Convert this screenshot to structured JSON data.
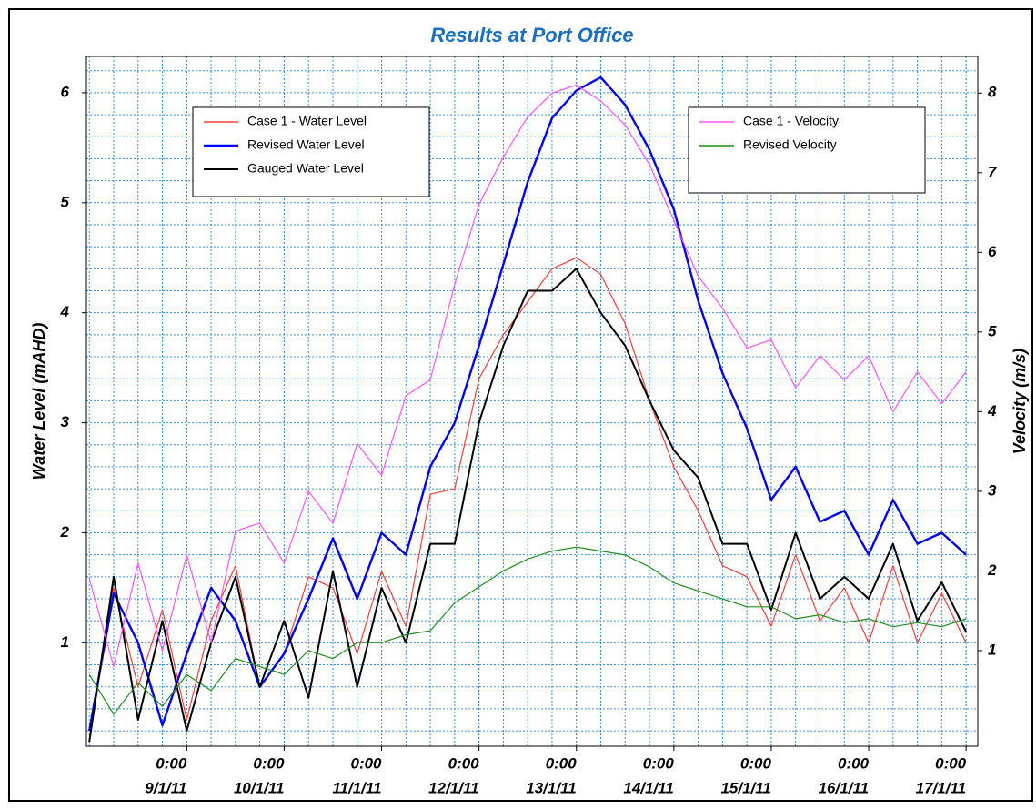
{
  "chart_data": {
    "type": "line",
    "title": "Results at Port Office",
    "y_label": "Water Level (mAHD)",
    "y2_label": "Velocity (m/s)",
    "x": [
      8.0,
      8.25,
      8.5,
      8.75,
      9.0,
      9.25,
      9.5,
      9.75,
      10.0,
      10.25,
      10.5,
      10.75,
      11.0,
      11.25,
      11.5,
      11.75,
      12.0,
      12.25,
      12.5,
      12.75,
      13.0,
      13.25,
      13.5,
      13.75,
      14.0,
      14.25,
      14.5,
      14.75,
      15.0,
      15.25,
      15.5,
      15.75,
      16.0,
      16.25,
      16.5,
      16.75,
      17.0
    ],
    "xlim": [
      7.97,
      17.12
    ],
    "xticks": [
      {
        "value": 9,
        "label": [
          "0:00",
          "9/1/11"
        ]
      },
      {
        "value": 10,
        "label": [
          "0:00",
          "10/1/11"
        ]
      },
      {
        "value": 11,
        "label": [
          "0:00",
          "11/1/11"
        ]
      },
      {
        "value": 12,
        "label": [
          "0:00",
          "12/1/11"
        ]
      },
      {
        "value": 13,
        "label": [
          "0:00",
          "13/1/11"
        ]
      },
      {
        "value": 14,
        "label": [
          "0:00",
          "14/1/11"
        ]
      },
      {
        "value": 15,
        "label": [
          "0:00",
          "15/1/11"
        ]
      },
      {
        "value": 16,
        "label": [
          "0:00",
          "16/1/11"
        ]
      },
      {
        "value": 17,
        "label": [
          "0:00",
          "17/1/11"
        ]
      }
    ],
    "ylim": [
      0.06,
      6.33
    ],
    "yticks": [
      1,
      2,
      3,
      4,
      5,
      6
    ],
    "y2lim": [
      -0.2,
      8.46
    ],
    "y2ticks": [
      1,
      2,
      3,
      4,
      5,
      6,
      7,
      8
    ],
    "grid": true,
    "minor_grid": {
      "x": 0.25,
      "y": 0.2
    },
    "series": [
      {
        "name": "Case 1 - Water Level",
        "color": "#ff3b3b",
        "width": 1.2,
        "values": [
          0.2,
          1.5,
          0.6,
          1.3,
          0.3,
          1.2,
          1.7,
          0.6,
          0.9,
          1.6,
          1.5,
          0.9,
          1.65,
          1.15,
          2.35,
          2.4,
          3.4,
          3.8,
          4.1,
          4.4,
          4.5,
          4.35,
          3.9,
          3.2,
          2.6,
          2.2,
          1.7,
          1.6,
          1.15,
          1.8,
          1.2,
          1.5,
          1.0,
          1.7,
          1.0,
          1.45,
          1.0
        ]
      },
      {
        "name": "Revised Water Level",
        "color": "#0000ff",
        "width": 2.4,
        "values": [
          0.2,
          1.45,
          1.0,
          0.25,
          0.9,
          1.5,
          1.2,
          0.6,
          0.9,
          1.4,
          1.95,
          1.4,
          2.0,
          1.8,
          2.6,
          3.0,
          3.7,
          4.44,
          5.19,
          5.77,
          6.02,
          6.14,
          5.89,
          5.48,
          4.94,
          4.11,
          3.45,
          2.95,
          2.3,
          2.6,
          2.1,
          2.2,
          1.8,
          2.3,
          1.9,
          2.0,
          1.8
        ]
      },
      {
        "name": "Gauged Water Level",
        "color": "#000000",
        "width": 2,
        "values": [
          0.1,
          1.6,
          0.3,
          1.2,
          0.2,
          1.0,
          1.6,
          0.6,
          1.2,
          0.5,
          1.65,
          0.6,
          1.5,
          1.0,
          1.9,
          1.9,
          3.0,
          3.7,
          4.2,
          4.2,
          4.4,
          4.0,
          3.7,
          3.2,
          2.75,
          2.5,
          1.9,
          1.9,
          1.3,
          2.0,
          1.4,
          1.6,
          1.4,
          1.9,
          1.2,
          1.55,
          1.1
        ]
      },
      {
        "name": "Case 1 - Velocity",
        "color": "#ff55ff",
        "width": 1.2,
        "axis": "y2",
        "values": [
          1.9,
          0.8,
          2.1,
          1.0,
          2.2,
          1.1,
          2.5,
          2.6,
          2.1,
          3.0,
          2.6,
          3.6,
          3.2,
          4.2,
          4.4,
          5.6,
          6.6,
          7.2,
          7.7,
          8.0,
          8.1,
          7.9,
          7.6,
          7.1,
          6.4,
          5.7,
          5.3,
          4.8,
          4.9,
          4.3,
          4.7,
          4.4,
          4.7,
          4.0,
          4.5,
          4.1,
          4.5
        ]
      },
      {
        "name": "Revised Velocity",
        "color": "#1f8f1f",
        "width": 1.2,
        "axis": "y2",
        "values": [
          0.7,
          0.2,
          0.6,
          0.3,
          0.7,
          0.5,
          0.9,
          0.8,
          0.7,
          1.0,
          0.9,
          1.1,
          1.1,
          1.2,
          1.25,
          1.6,
          1.8,
          2.0,
          2.15,
          2.25,
          2.3,
          2.25,
          2.2,
          2.05,
          1.85,
          1.75,
          1.65,
          1.55,
          1.55,
          1.4,
          1.45,
          1.35,
          1.4,
          1.3,
          1.35,
          1.3,
          1.4
        ]
      }
    ]
  }
}
